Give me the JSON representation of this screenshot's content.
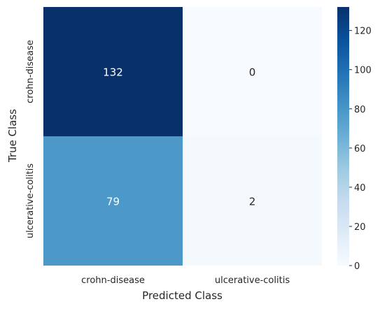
{
  "chart_data": {
    "type": "heatmap",
    "title": "",
    "xlabel": "Predicted Class",
    "ylabel": "True Class",
    "x_categories": [
      "crohn-disease",
      "ulcerative-colitis"
    ],
    "y_categories": [
      "crohn-disease",
      "ulcerative-colitis"
    ],
    "values": [
      [
        132,
        0
      ],
      [
        79,
        2
      ]
    ],
    "colormap": "Blues",
    "vmin": 0,
    "vmax": 132,
    "colorbar_ticks": [
      "0",
      "20",
      "40",
      "60",
      "80",
      "100",
      "120"
    ],
    "colorbar_tick_values": [
      0,
      20,
      40,
      60,
      80,
      100,
      120
    ],
    "colors": {
      "low": "#f7fbff",
      "high": "#08306b",
      "annotation_dark": "#262626",
      "annotation_light": "#ffffff"
    }
  }
}
